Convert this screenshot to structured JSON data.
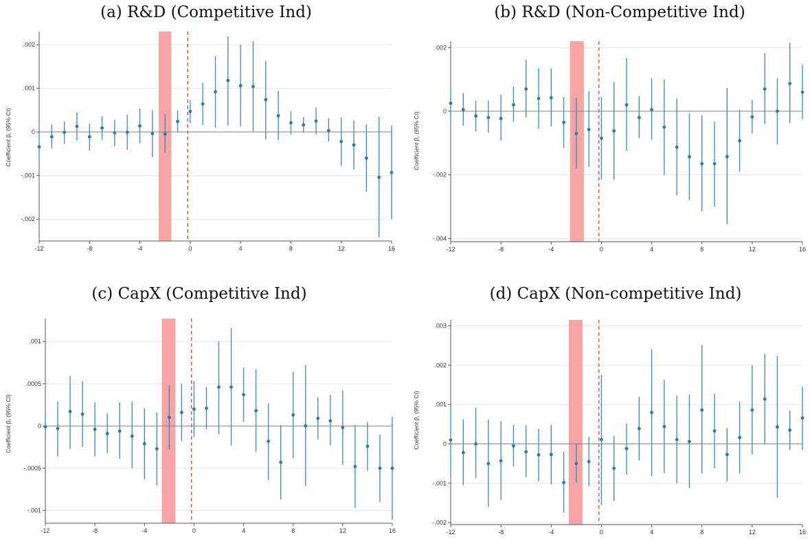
{
  "figure": {
    "panels": [
      {
        "title": "(a) R&D (Competitive Ind)",
        "ylabel": "Coefficient β, (95% CI)",
        "xticks": [
          "-12",
          "-8",
          "-4",
          "0",
          "4",
          "8",
          "12",
          "16"
        ],
        "yticks": [
          "-.002",
          "-.001",
          "0",
          ".001",
          ".002"
        ]
      },
      {
        "title": "(b) R&D (Non-Competitive Ind)",
        "ylabel": "Coefficient β, (95% CI)",
        "xticks": [
          "-12",
          "-8",
          "-4",
          "0",
          "4",
          "8",
          "12",
          "16"
        ],
        "yticks": [
          "-.004",
          "-.002",
          "0",
          ".002"
        ]
      },
      {
        "title": "(c) CapX (Competitive Ind)",
        "ylabel": "Coefficient β, (95% CI)",
        "xticks": [
          "-12",
          "-8",
          "-4",
          "0",
          "4",
          "8",
          "12",
          "16"
        ],
        "yticks": [
          "-.001",
          "-.0005",
          "0",
          ".0005",
          ".001"
        ]
      },
      {
        "title": "(d) CapX (Non-competitive Ind)",
        "ylabel": "Coefficient β, (95% CI)",
        "xticks": [
          "-12",
          "-8",
          "-4",
          "0",
          "4",
          "8",
          "12",
          "16"
        ],
        "yticks": [
          "-.002",
          "-.001",
          "0",
          ".001",
          ".002",
          ".003"
        ]
      }
    ]
  },
  "colors": {
    "point": "#2f75b0",
    "ci": "#3a86bf",
    "shade": "#f7a4a4",
    "vline": "#e03c3c",
    "zero": "#808080",
    "grid": "#e6e6e6",
    "axis": "#555555"
  },
  "chart_data": [
    {
      "type": "scatter",
      "title": "(a) R&D (Competitive Ind)",
      "ylabel": "Coefficient β, (95% CI)",
      "xlim": [
        -12,
        16
      ],
      "ylim": [
        -0.0025,
        0.0023
      ],
      "yticks": [
        -0.002,
        -0.001,
        0,
        0.001,
        0.002
      ],
      "xticks": [
        -12,
        -8,
        -4,
        0,
        4,
        8,
        12,
        16
      ],
      "grid": "horizontal",
      "shade_x": [
        -2.5,
        -1.5
      ],
      "vline_x": -0.2,
      "x": [
        -12,
        -11,
        -10,
        -9,
        -8,
        -7,
        -6,
        -5,
        -4,
        -3,
        -2,
        -1,
        0,
        1,
        2,
        3,
        4,
        5,
        6,
        7,
        8,
        9,
        10,
        11,
        12,
        13,
        14,
        15,
        16
      ],
      "y": [
        -0.00034,
        -0.00011,
        -1e-05,
        0.00013,
        -0.00011,
        9e-05,
        -2e-05,
        -1e-05,
        0.00014,
        -4e-05,
        -5e-05,
        0.00024,
        0.00047,
        0.00064,
        0.00092,
        0.00118,
        0.00106,
        0.00104,
        0.00074,
        0.00037,
        0.00021,
        0.00016,
        0.00025,
        3e-05,
        -0.00022,
        -0.0003,
        -0.0006,
        -0.00104,
        -0.00093
      ],
      "ci_low": [
        -0.00065,
        -0.00038,
        -0.00027,
        -0.0002,
        -0.00043,
        -0.00018,
        -0.00033,
        -0.00041,
        -0.00026,
        -0.00058,
        -0.00048,
        0,
        0.0002,
        0.00016,
        0.0001,
        0.00015,
        0.00013,
        0,
        -0.00017,
        -0.00019,
        -6e-05,
        -2e-05,
        -5e-05,
        -0.00022,
        -0.00078,
        -0.00086,
        -0.00137,
        -0.00242,
        -0.002
      ],
      "ci_high": [
        -3e-05,
        0.00017,
        0.00024,
        0.00045,
        0.00019,
        0.00036,
        0.00028,
        0.0004,
        0.00054,
        0.0005,
        0.0004,
        0.00049,
        0.00073,
        0.00113,
        0.00174,
        0.00219,
        0.002,
        0.00208,
        0.00163,
        0.00094,
        0.00048,
        0.00034,
        0.00056,
        0.00031,
        0.00033,
        0.00026,
        0.00017,
        0.00035,
        0.00015
      ]
    },
    {
      "type": "scatter",
      "title": "(b) R&D (Non-Competitive Ind)",
      "ylabel": "Coefficient β, (95% CI)",
      "xlim": [
        -12,
        16
      ],
      "ylim": [
        -0.0041,
        0.0022
      ],
      "yticks": [
        -0.004,
        -0.002,
        0,
        0.002
      ],
      "xticks": [
        -12,
        -8,
        -4,
        0,
        4,
        8,
        12,
        16
      ],
      "grid": "horizontal",
      "shade_x": [
        -2.5,
        -1.4
      ],
      "vline_x": -0.2,
      "x": [
        -12,
        -11,
        -10,
        -9,
        -8,
        -7,
        -6,
        -5,
        -4,
        -3,
        -2,
        -1,
        0,
        1,
        2,
        3,
        4,
        5,
        6,
        7,
        8,
        9,
        10,
        11,
        12,
        13,
        14,
        15,
        16
      ],
      "y": [
        0.00025,
        5e-05,
        -0.00015,
        -0.0002,
        -0.00023,
        0.0002,
        0.0007,
        0.0004,
        0.00042,
        -0.00035,
        -0.0007,
        -0.00058,
        -0.00085,
        -0.00062,
        0.0002,
        -0.0002,
        5e-05,
        -0.0005,
        -0.00113,
        -0.00143,
        -0.00165,
        -0.00165,
        -0.00143,
        -0.00093,
        -0.00018,
        0.0007,
        0,
        0.00087,
        0.0006
      ],
      "ci_low": [
        -0.00025,
        -0.00045,
        -0.00063,
        -0.00068,
        -0.00093,
        -0.00033,
        -0.0002,
        -0.00055,
        -0.00048,
        -0.00115,
        -0.0018,
        -0.00175,
        -0.00215,
        -0.00215,
        -0.00125,
        -0.00085,
        -0.0009,
        -0.002,
        -0.00265,
        -0.0028,
        -0.00315,
        -0.003,
        -0.00355,
        -0.0019,
        -0.0007,
        -0.0004,
        -0.00105,
        -0.00037,
        -0.00025
      ],
      "ci_high": [
        0.00077,
        0.00057,
        0.00033,
        0.00033,
        0.00052,
        0.00077,
        0.00162,
        0.00135,
        0.00135,
        0.00045,
        0.0004,
        0.00063,
        0.00046,
        0.00092,
        0.00167,
        0.00047,
        0.00103,
        0.001,
        0.0004,
        -7e-05,
        -0.00013,
        -0.00033,
        0.00073,
        5e-05,
        0.00035,
        0.00182,
        0.00103,
        0.00215,
        0.00148
      ]
    },
    {
      "type": "scatter",
      "title": "(c) CapX (Competitive Ind)",
      "ylabel": "Coefficient β, (95% CI)",
      "xlim": [
        -12,
        16
      ],
      "ylim": [
        -0.00115,
        0.00127
      ],
      "yticks": [
        -0.001,
        -0.0005,
        0,
        0.0005,
        0.001
      ],
      "xticks": [
        -12,
        -8,
        -4,
        0,
        4,
        8,
        12,
        16
      ],
      "grid": "horizontal",
      "shade_x": [
        -2.6,
        -1.5
      ],
      "vline_x": -0.2,
      "x": [
        -12,
        -11,
        -10,
        -9,
        -8,
        -7,
        -6,
        -5,
        -4,
        -3,
        -2,
        -1,
        0,
        1,
        2,
        3,
        4,
        5,
        6,
        7,
        8,
        9,
        10,
        11,
        12,
        13,
        14,
        15,
        16
      ],
      "y": [
        -1e-05,
        -3e-05,
        0.00017,
        0.00014,
        -4e-05,
        -9e-05,
        -6e-05,
        -0.00012,
        -0.00021,
        -0.00027,
        0.0001,
        0.00016,
        0.0002,
        0.00021,
        0.00046,
        0.00046,
        0.00037,
        0.00018,
        -0.00018,
        -0.00043,
        0.00013,
        0,
        9e-05,
        6e-05,
        -2e-05,
        -0.00048,
        -0.00024,
        -0.0005,
        -0.0005
      ],
      "ci_low": [
        -0.00018,
        -0.00036,
        -0.00027,
        -0.00025,
        -0.00036,
        -0.00032,
        -0.00039,
        -0.0005,
        -0.00063,
        -0.0007,
        -0.00028,
        -0.00018,
        -0.00013,
        -4e-05,
        -0.0001,
        -0.00023,
        5e-05,
        -0.00031,
        -0.00064,
        -0.00087,
        -0.00038,
        -0.00071,
        -0.00016,
        -0.00023,
        -0.00046,
        -0.00097,
        -0.00053,
        -0.0009,
        -0.00111
      ],
      "ci_high": [
        0.00016,
        0.00029,
        0.00059,
        0.00053,
        0.00028,
        0.00015,
        0.00028,
        0.00029,
        0.00021,
        0.00016,
        0.00048,
        0.0005,
        0.00053,
        0.00046,
        0.001,
        0.00116,
        0.00069,
        0.00067,
        0.00027,
        1e-05,
        0.00064,
        0.00072,
        0.00034,
        0.00037,
        0.00042,
        1e-05,
        5e-05,
        -0.0001,
        0.00011
      ]
    },
    {
      "type": "scatter",
      "title": "(d) CapX (Non-competitive Ind)",
      "ylabel": "Coefficient β, (95% CI)",
      "xlim": [
        -12,
        16
      ],
      "ylim": [
        -0.00205,
        0.00315
      ],
      "yticks": [
        -0.002,
        -0.001,
        0,
        0.001,
        0.002,
        0.003
      ],
      "xticks": [
        -12,
        -8,
        -4,
        0,
        4,
        8,
        12,
        16
      ],
      "grid": "horizontal",
      "shade_x": [
        -2.6,
        -1.5
      ],
      "vline_x": -0.2,
      "x": [
        -12,
        -11,
        -10,
        -9,
        -8,
        -7,
        -6,
        -5,
        -4,
        -3,
        -2,
        -1,
        0,
        1,
        2,
        3,
        4,
        5,
        6,
        7,
        8,
        9,
        10,
        11,
        12,
        13,
        14,
        15,
        16
      ],
      "y": [
        0.0001,
        -0.00022,
        0,
        -0.0005,
        -0.00043,
        -5e-05,
        -0.0002,
        -0.00028,
        -0.00027,
        -0.00098,
        -0.0005,
        -0.00045,
        0.00011,
        -0.00062,
        -0.00012,
        0.00039,
        0.0008,
        0.00044,
        0.00011,
        6e-05,
        0.00086,
        0.00033,
        -0.00027,
        0.00016,
        0.00086,
        0.00114,
        0.00043,
        0.00035,
        0.00066
      ],
      "ci_low": [
        -0.00068,
        -0.00105,
        -0.00087,
        -0.0016,
        -0.00143,
        -0.00057,
        -0.00085,
        -0.00095,
        -0.00103,
        -0.00175,
        -0.00098,
        -0.00108,
        -0.00155,
        -0.00145,
        -0.00078,
        -0.00042,
        -0.00082,
        -0.00075,
        -0.001,
        -0.00112,
        -0.00075,
        -0.00062,
        -0.00095,
        -0.00075,
        -0.00027,
        0,
        -0.00137,
        -0.00015,
        -0.00015
      ],
      "ci_high": [
        0.00087,
        0.00062,
        0.00092,
        0.00062,
        0.00058,
        0.00048,
        0.00047,
        0.00038,
        0.00048,
        -0.0002,
        0,
        0.00018,
        0.00175,
        0.0002,
        0.00052,
        0.0012,
        0.0024,
        0.00163,
        0.00123,
        0.00125,
        0.00251,
        0.00128,
        0.0004,
        0.00108,
        0.002,
        0.00229,
        0.00223,
        0.00085,
        0.00146
      ]
    }
  ]
}
